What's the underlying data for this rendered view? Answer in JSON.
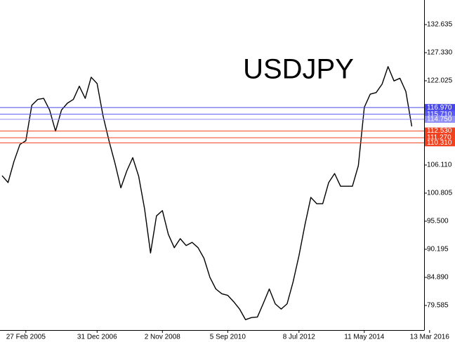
{
  "chart_data": {
    "type": "line",
    "title": "USDJPY",
    "title_color": "#1f8a5b",
    "categories": [
      null,
      null,
      null,
      null,
      "27 Feb 2005",
      null,
      null,
      null,
      null,
      null,
      null,
      null,
      null,
      null,
      null,
      null,
      "31 Dec 2006",
      null,
      null,
      null,
      null,
      null,
      null,
      null,
      null,
      null,
      null,
      "2 Nov 2008",
      null,
      null,
      null,
      null,
      null,
      null,
      null,
      null,
      null,
      null,
      "5 Sep 2010",
      null,
      null,
      null,
      null,
      null,
      null,
      null,
      null,
      null,
      null,
      null,
      "8 Jul 2012",
      null,
      null,
      null,
      null,
      null,
      null,
      null,
      null,
      null,
      null,
      "11 May 2014",
      null,
      null,
      null,
      null,
      null,
      null,
      null,
      null,
      null,
      null,
      "13 Mar 2016"
    ],
    "series": [
      {
        "color": "#000000",
        "values": [
          104.1,
          102.8,
          106.8,
          110.0,
          110.7,
          117.4,
          118.5,
          118.7,
          116.5,
          112.5,
          116.5,
          117.8,
          118.5,
          121.0,
          118.7,
          122.7,
          121.5,
          115.4,
          110.7,
          106.5,
          101.8,
          105.0,
          107.5,
          104.0,
          97.8,
          89.5,
          96.5,
          97.5,
          93.0,
          90.5,
          92.2,
          90.9,
          91.5,
          90.5,
          88.5,
          84.9,
          82.7,
          81.8,
          81.5,
          80.3,
          78.9,
          76.9,
          77.3,
          77.4,
          80.0,
          82.7,
          79.9,
          78.9,
          79.9,
          84.0,
          89.0,
          94.8,
          100.0,
          98.8,
          98.8,
          102.8,
          104.5,
          102.1,
          102.1,
          102.1,
          106.0,
          117.0,
          119.5,
          119.8,
          121.4,
          124.7,
          122.0,
          122.5,
          120.0,
          113.4,
          null,
          null,
          null
        ]
      }
    ],
    "ylim": [
      74.94,
      137.28
    ],
    "yticks": [
      132.635,
      {
        "value": 127.33,
        "label": "127.330"
      },
      122.025,
      {
        "value": 106.11,
        "label": "106.110"
      },
      100.805,
      {
        "value": 95.5,
        "label": "95.500"
      },
      90.195,
      {
        "value": 84.89,
        "label": "84.890"
      },
      79.585
    ],
    "levels": [
      {
        "value": 116.97,
        "label": "116.970",
        "color": "#4646e8"
      },
      {
        "value": 115.71,
        "label": "115.710",
        "color": "#5a5af0"
      },
      {
        "value": 114.75,
        "label": "114.750",
        "color": "#8f8ff5"
      },
      {
        "value": 112.53,
        "label": "112.530",
        "color": "#f0401e"
      },
      {
        "value": 111.27,
        "label": "111.270",
        "color": "#f0401e"
      },
      {
        "value": 110.31,
        "label": "110.310",
        "color": "#f0401e"
      }
    ]
  }
}
